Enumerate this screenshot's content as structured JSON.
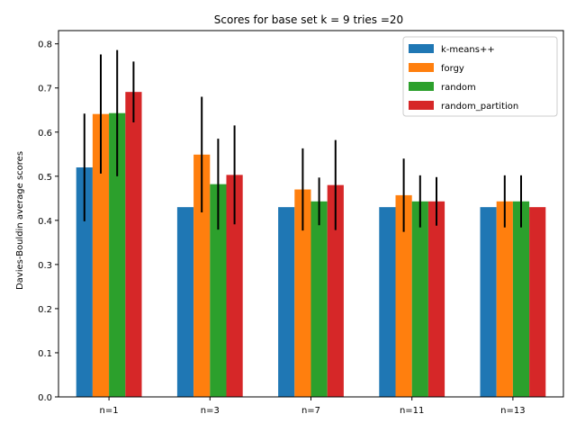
{
  "chart_data": {
    "type": "bar",
    "title": "Scores for base set k = 9  tries =20",
    "xlabel": "",
    "ylabel": "Davies-Bouldin average scores",
    "categories": [
      "n=1",
      "n=3",
      "n=7",
      "n=11",
      "n=13"
    ],
    "ylim": [
      0,
      0.83
    ],
    "yticks": [
      "0.0",
      "0.1",
      "0.2",
      "0.3",
      "0.4",
      "0.5",
      "0.6",
      "0.7",
      "0.8"
    ],
    "legend_position": "top-right",
    "grid": false,
    "series": [
      {
        "name": "k-means++",
        "color": "#1f77b4",
        "values": [
          0.52,
          0.43,
          0.43,
          0.43,
          0.43
        ],
        "errors": [
          0.122,
          0.0,
          0.0,
          0.0,
          0.0
        ]
      },
      {
        "name": "forgy",
        "color": "#ff7f0e",
        "values": [
          0.641,
          0.549,
          0.47,
          0.457,
          0.443
        ],
        "errors": [
          0.135,
          0.131,
          0.093,
          0.083,
          0.059
        ]
      },
      {
        "name": "random",
        "color": "#2ca02c",
        "values": [
          0.643,
          0.482,
          0.443,
          0.443,
          0.443
        ],
        "errors": [
          0.143,
          0.103,
          0.054,
          0.059,
          0.059
        ]
      },
      {
        "name": "random_partition",
        "color": "#d62728",
        "values": [
          0.691,
          0.503,
          0.48,
          0.443,
          0.43
        ],
        "errors": [
          0.069,
          0.112,
          0.102,
          0.055,
          0.0
        ]
      }
    ]
  }
}
